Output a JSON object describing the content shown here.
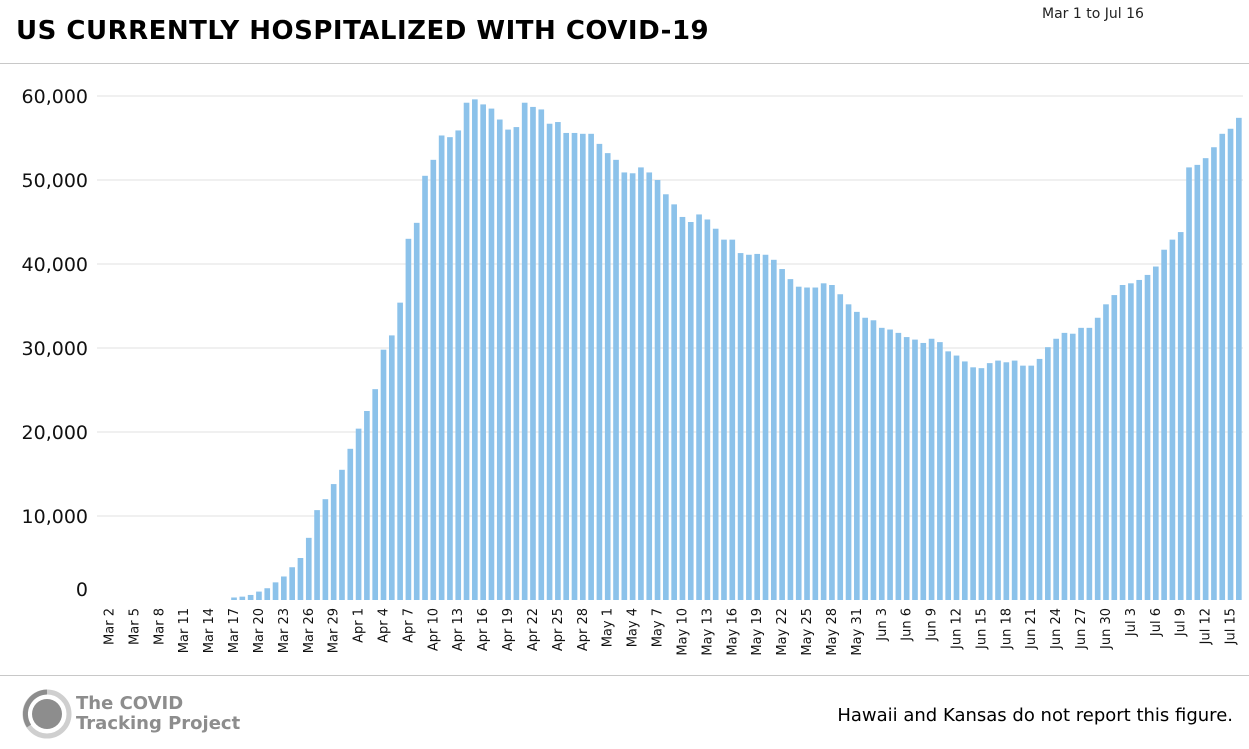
{
  "header": {
    "title": "US CURRENTLY HOSPITALIZED WITH COVID-19",
    "date_range": "Mar 1 to Jul 16"
  },
  "footer": {
    "logo_line1": "The COVID",
    "logo_line2": "Tracking Project",
    "note": "Hawaii and Kansas do not report this figure."
  },
  "colors": {
    "bar": "#8cc2ea",
    "grid": "#e2e2e2",
    "text": "#000000"
  },
  "chart_data": {
    "type": "bar",
    "title": "US CURRENTLY HOSPITALIZED WITH COVID-19",
    "xlabel": "",
    "ylabel": "",
    "ylim": [
      0,
      60000
    ],
    "y_ticks": [
      0,
      10000,
      20000,
      30000,
      40000,
      50000,
      60000
    ],
    "y_tick_labels": [
      "0",
      "10,000",
      "20,000",
      "30,000",
      "40,000",
      "50,000",
      "60,000"
    ],
    "grid": true,
    "x_tick_labels": [
      "Mar 2",
      "Mar 5",
      "Mar 8",
      "Mar 11",
      "Mar 14",
      "Mar 17",
      "Mar 20",
      "Mar 23",
      "Mar 26",
      "Mar 29",
      "Apr 1",
      "Apr 4",
      "Apr 7",
      "Apr 10",
      "Apr 13",
      "Apr 16",
      "Apr 19",
      "Apr 22",
      "Apr 25",
      "Apr 28",
      "May 1",
      "May 4",
      "May 7",
      "May 10",
      "May 13",
      "May 16",
      "May 19",
      "May 22",
      "May 25",
      "May 28",
      "May 31",
      "Jun 3",
      "Jun 6",
      "Jun 9",
      "Jun 12",
      "Jun 15",
      "Jun 18",
      "Jun 21",
      "Jun 24",
      "Jun 27",
      "Jun 30",
      "Jul 3",
      "Jul 6",
      "Jul 9",
      "Jul 12",
      "Jul 15"
    ],
    "x_start": "Mar 1",
    "x_end": "Jul 16",
    "values": [
      0,
      0,
      0,
      0,
      0,
      0,
      0,
      0,
      0,
      0,
      0,
      0,
      0,
      0,
      0,
      0,
      300,
      400,
      600,
      1000,
      1400,
      2100,
      2800,
      3900,
      5000,
      7400,
      10700,
      12000,
      13800,
      15500,
      18000,
      20400,
      22500,
      25100,
      29800,
      31500,
      35400,
      43000,
      44900,
      50500,
      52400,
      55300,
      55100,
      55900,
      59200,
      59600,
      59000,
      58500,
      57200,
      56000,
      56300,
      59200,
      58700,
      58400,
      56700,
      56900,
      55600,
      55600,
      55500,
      55500,
      54300,
      53200,
      52400,
      50900,
      50800,
      51500,
      50900,
      50000,
      48300,
      47100,
      45600,
      45000,
      45900,
      45300,
      44200,
      42900,
      42900,
      41300,
      41100,
      41200,
      41100,
      40500,
      39400,
      38200,
      37300,
      37200,
      37200,
      37700,
      37500,
      36400,
      35200,
      34300,
      33600,
      33300,
      32400,
      32200,
      31800,
      31300,
      31000,
      30600,
      31100,
      30700,
      29600,
      29100,
      28400,
      27700,
      27600,
      28200,
      28500,
      28300,
      28500,
      27900,
      27900,
      28700,
      30100,
      31100,
      31800,
      31700,
      32400,
      32400,
      33600,
      35200,
      36300,
      37500,
      37700,
      38100,
      38700,
      39700,
      41700,
      42900,
      43800,
      51500,
      51800,
      52600,
      53900,
      55500,
      56100,
      57400
    ]
  }
}
